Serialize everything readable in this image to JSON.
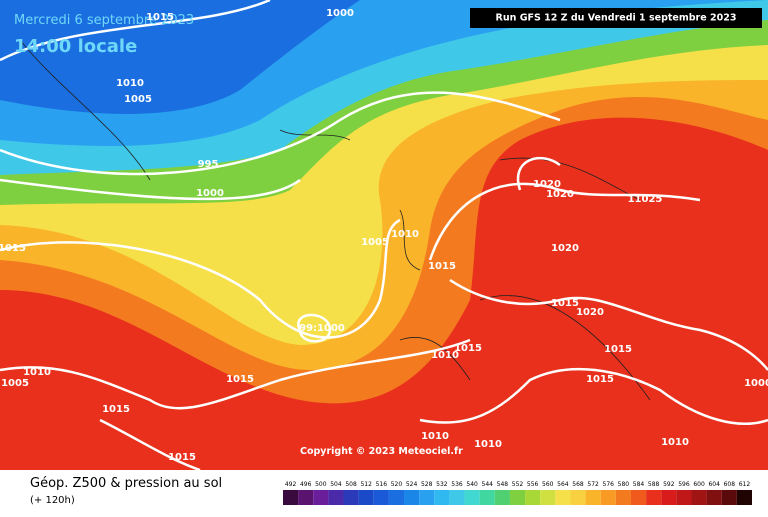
{
  "header": {
    "date": "Mercredi 6 septembre 2023",
    "time": "14:00 locale",
    "run": "Run GFS 12 Z du Vendredi 1 septembre 2023"
  },
  "isobar_labels": [
    "1015",
    "1000",
    "1010",
    "1005",
    "995",
    "1000",
    "1015",
    "1020",
    "1020",
    "11025",
    "1005",
    "1010",
    "1015",
    "1020",
    "1015",
    "1020",
    "99:1000",
    "1010",
    "1015",
    "1015",
    "1010",
    "1005",
    "1015",
    "1015",
    "1015",
    "1010",
    "1010",
    "1010",
    "1015",
    "1000"
  ],
  "copyright": "Copyright © 2023 Meteociel.fr",
  "footer": {
    "title": "Géop. Z500 & pression au sol",
    "lead": "(+ 120h)"
  },
  "legend": {
    "values": [
      492,
      496,
      500,
      504,
      508,
      512,
      516,
      520,
      524,
      528,
      532,
      536,
      540,
      544,
      548,
      552,
      556,
      560,
      564,
      568,
      572,
      576,
      580,
      584,
      588,
      592,
      596,
      600,
      604,
      608,
      612
    ],
    "colors": [
      "#3a0a3e",
      "#5a1470",
      "#6a1e9a",
      "#4a2aa8",
      "#2a3ab8",
      "#1a4ac8",
      "#1a5ad8",
      "#1a6ee0",
      "#1a86e8",
      "#2aa0f0",
      "#30b8f0",
      "#40c8e8",
      "#40d8d0",
      "#40d8a0",
      "#50d070",
      "#7fd040",
      "#a8d838",
      "#d0e040",
      "#f5e04a",
      "#f8d040",
      "#f9b42a",
      "#f89a24",
      "#f47a20",
      "#f05a1c",
      "#e8301c",
      "#d81c1c",
      "#c01818",
      "#a01414",
      "#801010",
      "#5a0a0a",
      "#200404"
    ]
  }
}
